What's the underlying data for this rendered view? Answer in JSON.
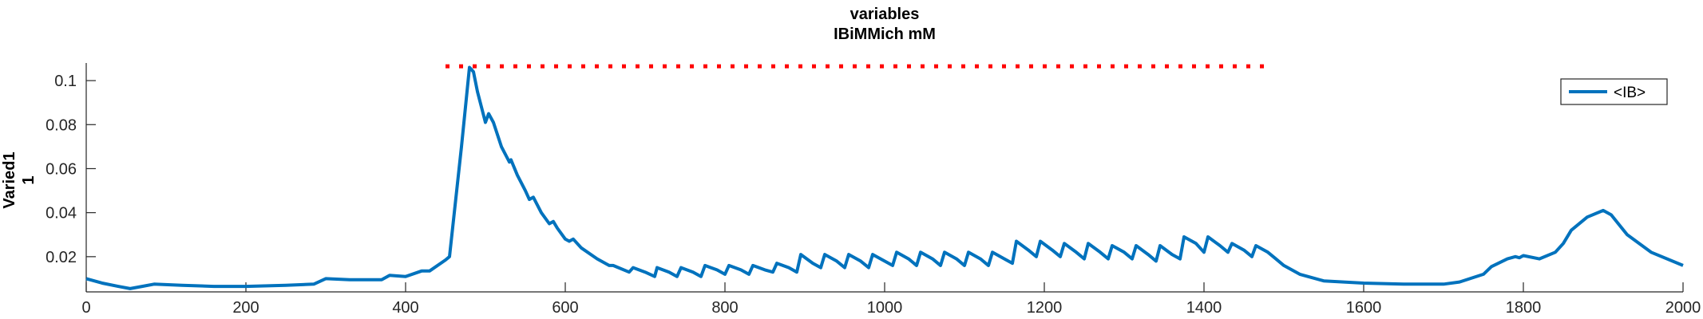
{
  "chart_data": {
    "type": "line",
    "title": [
      "variables",
      "IBiMMich mM"
    ],
    "ylabel": [
      "Varied1",
      "1"
    ],
    "xlabel": "",
    "xlim": [
      0,
      2000
    ],
    "ylim": [
      0.004,
      0.108
    ],
    "xticks": [
      0,
      200,
      400,
      600,
      800,
      1000,
      1200,
      1400,
      1600,
      1800,
      2000
    ],
    "xtick_labels": [
      "0",
      "200",
      "400",
      "600",
      "800",
      "1000",
      "1200",
      "1400",
      "1600",
      "1800",
      "2000"
    ],
    "yticks": [
      0.02,
      0.04,
      0.06,
      0.08,
      0.1
    ],
    "ytick_labels": [
      "0.02",
      "0.04",
      "0.06",
      "0.08",
      "0.1"
    ],
    "legend": {
      "position": "top-right",
      "entries": [
        "<IB>"
      ]
    },
    "grid": false,
    "series": [
      {
        "name": "<IB>",
        "color": "#0072BD",
        "x": [
          0,
          20,
          40,
          55,
          70,
          85,
          120,
          160,
          200,
          250,
          285,
          300,
          330,
          370,
          380,
          400,
          420,
          430,
          450,
          455,
          470,
          480,
          485,
          490,
          500,
          504,
          510,
          520,
          530,
          532,
          540,
          550,
          555,
          560,
          570,
          580,
          585,
          590,
          600,
          605,
          610,
          620,
          640,
          655,
          660,
          680,
          685,
          700,
          712,
          715,
          730,
          740,
          745,
          760,
          770,
          775,
          790,
          800,
          805,
          820,
          830,
          835,
          850,
          860,
          865,
          880,
          890,
          895,
          910,
          920,
          925,
          940,
          950,
          955,
          970,
          980,
          985,
          1000,
          1010,
          1015,
          1030,
          1040,
          1045,
          1060,
          1070,
          1075,
          1090,
          1100,
          1105,
          1120,
          1130,
          1135,
          1150,
          1160,
          1165,
          1180,
          1190,
          1195,
          1210,
          1220,
          1225,
          1240,
          1250,
          1255,
          1270,
          1280,
          1285,
          1300,
          1310,
          1315,
          1330,
          1340,
          1345,
          1360,
          1370,
          1375,
          1390,
          1400,
          1405,
          1420,
          1430,
          1435,
          1450,
          1460,
          1465,
          1480,
          1490,
          1500,
          1520,
          1550,
          1600,
          1650,
          1700,
          1720,
          1750,
          1760,
          1780,
          1790,
          1795,
          1800,
          1820,
          1840,
          1850,
          1860,
          1880,
          1900,
          1910,
          1930,
          1960,
          2000
        ],
        "y": [
          0.01,
          0.008,
          0.0065,
          0.0055,
          0.0065,
          0.0075,
          0.007,
          0.0065,
          0.0065,
          0.007,
          0.0075,
          0.01,
          0.0095,
          0.0095,
          0.0115,
          0.011,
          0.0135,
          0.0135,
          0.0185,
          0.02,
          0.07,
          0.106,
          0.104,
          0.095,
          0.081,
          0.085,
          0.081,
          0.07,
          0.063,
          0.064,
          0.057,
          0.05,
          0.046,
          0.047,
          0.04,
          0.035,
          0.036,
          0.033,
          0.028,
          0.027,
          0.028,
          0.024,
          0.019,
          0.016,
          0.016,
          0.013,
          0.015,
          0.013,
          0.011,
          0.015,
          0.013,
          0.011,
          0.015,
          0.013,
          0.011,
          0.016,
          0.014,
          0.012,
          0.016,
          0.014,
          0.012,
          0.016,
          0.014,
          0.013,
          0.017,
          0.015,
          0.013,
          0.021,
          0.017,
          0.015,
          0.021,
          0.018,
          0.015,
          0.021,
          0.018,
          0.015,
          0.021,
          0.018,
          0.016,
          0.022,
          0.019,
          0.016,
          0.022,
          0.019,
          0.016,
          0.022,
          0.019,
          0.016,
          0.022,
          0.019,
          0.016,
          0.022,
          0.019,
          0.017,
          0.027,
          0.023,
          0.02,
          0.027,
          0.023,
          0.02,
          0.026,
          0.022,
          0.019,
          0.026,
          0.022,
          0.019,
          0.025,
          0.022,
          0.019,
          0.025,
          0.021,
          0.018,
          0.025,
          0.021,
          0.019,
          0.029,
          0.026,
          0.022,
          0.029,
          0.025,
          0.022,
          0.026,
          0.023,
          0.02,
          0.025,
          0.022,
          0.019,
          0.016,
          0.012,
          0.009,
          0.008,
          0.0075,
          0.0075,
          0.0085,
          0.012,
          0.0155,
          0.019,
          0.02,
          0.0195,
          0.0205,
          0.019,
          0.022,
          0.026,
          0.032,
          0.038,
          0.041,
          0.039,
          0.03,
          0.022,
          0.016
        ]
      },
      {
        "name": "",
        "style": "dotted",
        "color": "#FF0000",
        "x": [
          450,
          1485
        ],
        "y": [
          0.1065,
          0.1065
        ]
      }
    ]
  }
}
